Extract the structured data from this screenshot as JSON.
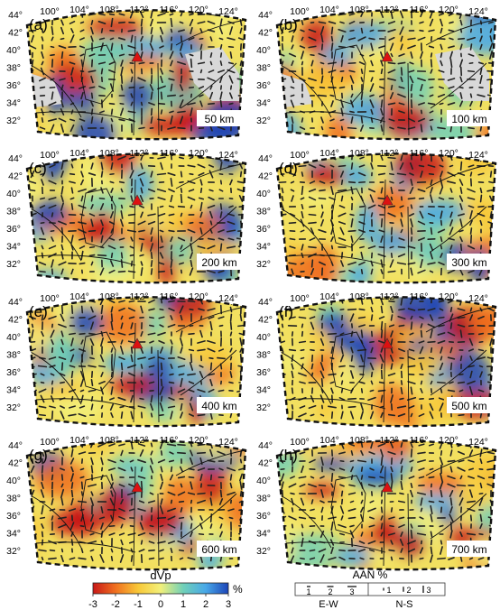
{
  "panels": [
    {
      "letter": "(a)",
      "depth": "50 km"
    },
    {
      "letter": "(b)",
      "depth": "100 km"
    },
    {
      "letter": "(c)",
      "depth": "200 km"
    },
    {
      "letter": "(d)",
      "depth": "300 km"
    },
    {
      "letter": "(e)",
      "depth": "400 km"
    },
    {
      "letter": "(f)",
      "depth": "500 km"
    },
    {
      "letter": "(g)",
      "depth": "600 km"
    },
    {
      "letter": "(h)",
      "depth": "700 km"
    }
  ],
  "lon_ticks": [
    "100°",
    "104°",
    "108°",
    "112°",
    "116°",
    "120°",
    "124°"
  ],
  "lat_ticks": [
    "44°",
    "42°",
    "40°",
    "38°",
    "36°",
    "34°",
    "32°"
  ],
  "colorbar": {
    "title": "dVp",
    "unit": "%",
    "ticks": [
      "-3",
      "-2",
      "-1",
      "0",
      "1",
      "2",
      "3"
    ],
    "colors": [
      "#c81818",
      "#f07020",
      "#f8c838",
      "#f2f07a",
      "#70d0b8",
      "#48a8e8",
      "#1c44b8"
    ]
  },
  "aan_legend": {
    "title": "AAN %",
    "ew_ticks": [
      "1",
      "2",
      "3"
    ],
    "ns_ticks": [
      "1",
      "2",
      "3"
    ],
    "ew_label": "E-W",
    "ns_label": "N-S"
  },
  "marker_color": "#dd1111"
}
